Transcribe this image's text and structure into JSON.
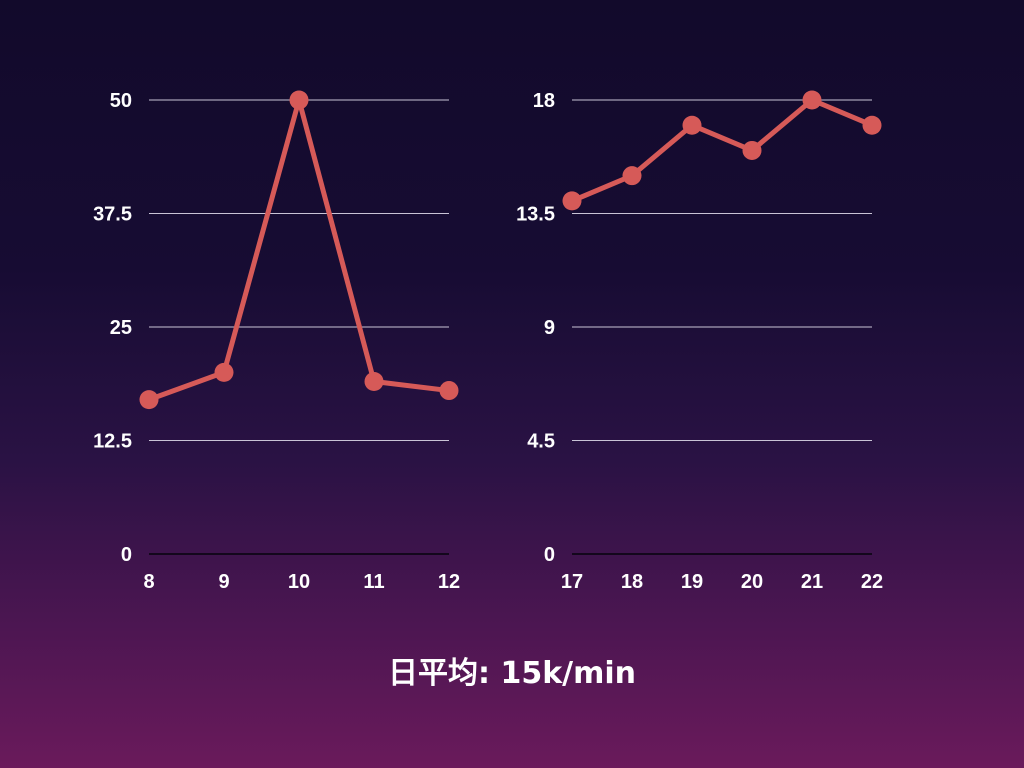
{
  "colors": {
    "series": "#d65a58",
    "background_top": "#120a2b",
    "background_bottom": "#6a1a5b"
  },
  "caption": "日平均: 15k/min",
  "chart_data": [
    {
      "type": "line",
      "x": [
        8,
        9,
        10,
        11,
        12
      ],
      "series": [
        {
          "values": [
            17,
            20,
            50,
            19,
            18
          ]
        }
      ],
      "ylim": [
        0,
        50
      ],
      "yticks": [
        "0",
        "12.5",
        "25",
        "37.5",
        "50"
      ],
      "xticks": [
        "8",
        "9",
        "10",
        "11",
        "12"
      ],
      "grid": true,
      "markers": true
    },
    {
      "type": "line",
      "x": [
        17,
        18,
        19,
        20,
        21,
        22
      ],
      "series": [
        {
          "values": [
            14,
            15,
            17,
            16,
            18,
            17
          ]
        }
      ],
      "ylim": [
        0,
        18
      ],
      "yticks": [
        "0",
        "4.5",
        "9",
        "13.5",
        "18"
      ],
      "xticks": [
        "17",
        "18",
        "19",
        "20",
        "21",
        "22"
      ],
      "grid": true,
      "markers": true
    }
  ]
}
